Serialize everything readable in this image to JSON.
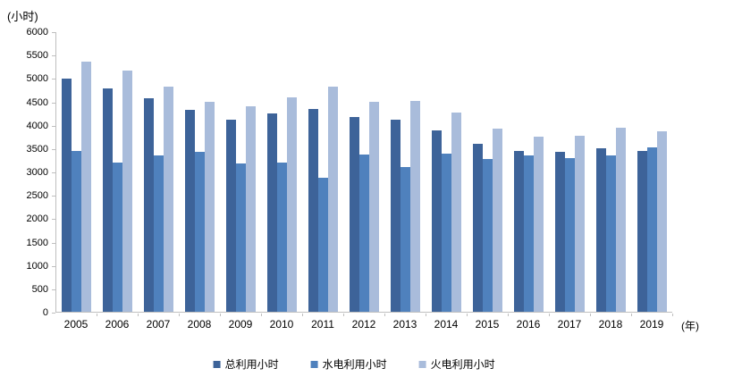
{
  "chart_data": {
    "type": "bar",
    "title": "(小时)",
    "x_unit_label": "(年)",
    "categories": [
      "2005",
      "2006",
      "2007",
      "2008",
      "2009",
      "2010",
      "2011",
      "2012",
      "2013",
      "2014",
      "2015",
      "2016",
      "2017",
      "2018",
      "2019"
    ],
    "series": [
      {
        "name": "总利用小时",
        "color": "#3d6399",
        "values": [
          5000,
          4800,
          4575,
          4325,
          4125,
          4250,
          4350,
          4175,
          4125,
          3900,
          3600,
          3450,
          3425,
          3500,
          3450
        ]
      },
      {
        "name": "水电利用小时",
        "color": "#4f81bd",
        "values": [
          3450,
          3200,
          3350,
          3425,
          3175,
          3200,
          2875,
          3375,
          3100,
          3400,
          3275,
          3350,
          3300,
          3350,
          3525
        ]
      },
      {
        "name": "火电利用小时",
        "color": "#a9bcdb",
        "values": [
          5375,
          5175,
          4825,
          4500,
          4400,
          4600,
          4825,
          4500,
          4525,
          4275,
          3925,
          3750,
          3775,
          3950,
          3875
        ]
      }
    ],
    "ylim": [
      0,
      6000
    ],
    "ytick_step": 500,
    "grid": false,
    "legend_position": "bottom",
    "axis_color": "#bfbfbf"
  }
}
